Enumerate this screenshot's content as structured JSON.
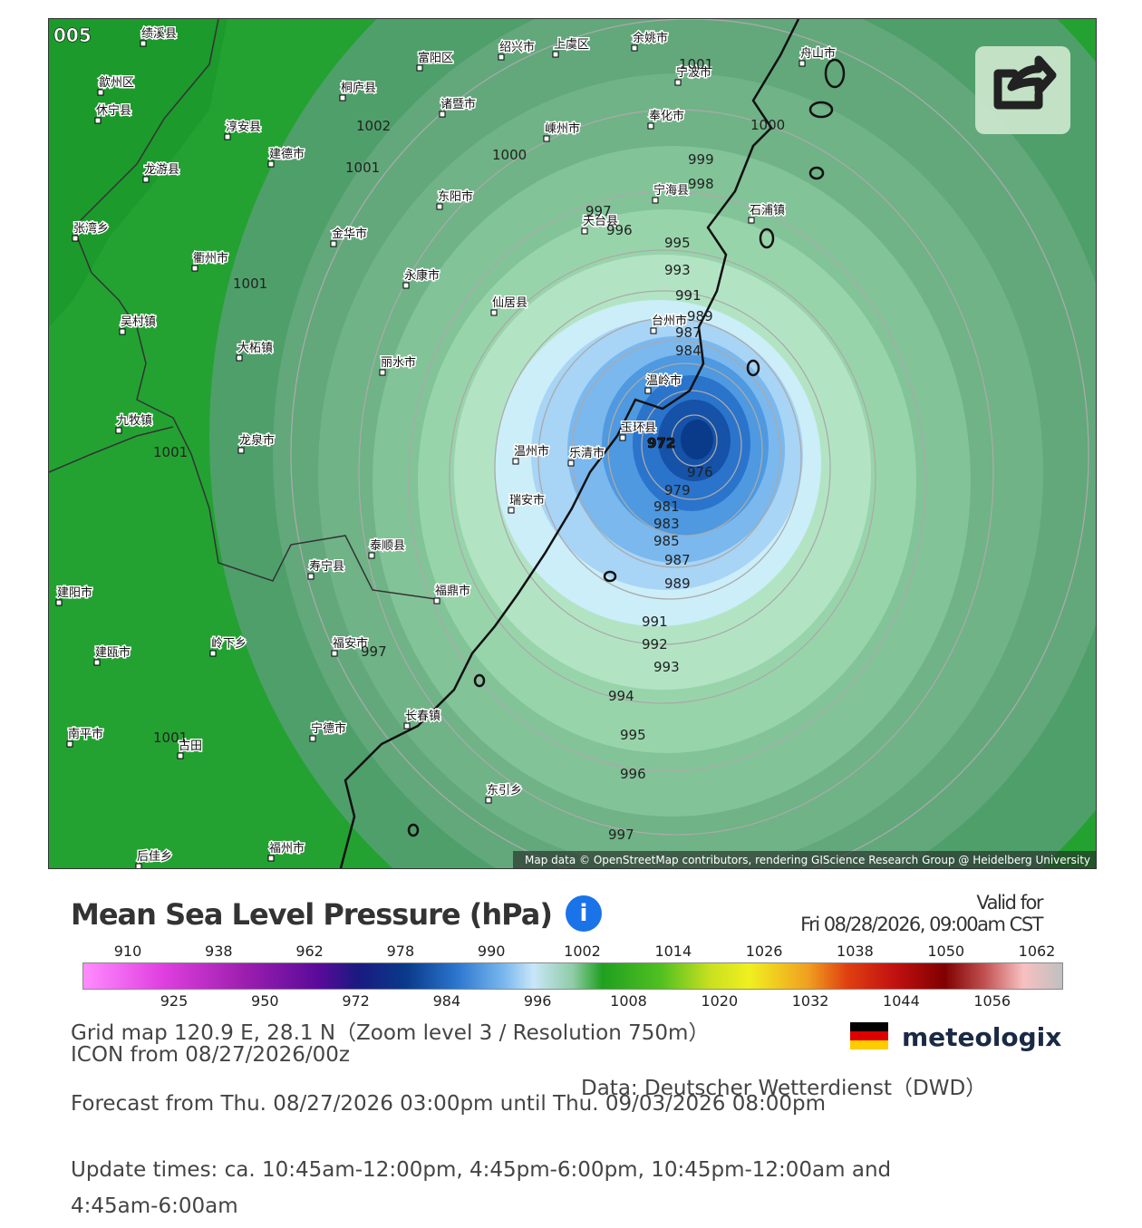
{
  "map": {
    "corner_label": "005",
    "places": [
      "绩溪县",
      "歙州区",
      "休宁县",
      "富阳区",
      "桐庐县",
      "诸暨市",
      "绍兴市",
      "上虞区",
      "余姚市",
      "宁波市",
      "舟山市",
      "奉化市",
      "嵊州市",
      "淳安县",
      "建德市",
      "龙游县",
      "东阳市",
      "宁海县",
      "天台县",
      "石浦镇",
      "张湾乡",
      "金华市",
      "衢州市",
      "永康市",
      "仙居县",
      "台州市",
      "吴村镇",
      "大柘镇",
      "丽水市",
      "温岭市",
      "九牧镇",
      "玉环县",
      "龙泉市",
      "温州市",
      "乐清市",
      "瑞安市",
      "泰顺县",
      "寿宁县",
      "福鼎市",
      "建阳市",
      "建瓯市",
      "岭下乡",
      "福安市",
      "宁德市",
      "长春镇",
      "南平市",
      "古田",
      "东引乡",
      "福州市",
      "后佳乡"
    ],
    "isobar_labels": [
      1002,
      1001,
      1000,
      1000,
      1001,
      999,
      998,
      997,
      996,
      995,
      993,
      991,
      989,
      987,
      984,
      972,
      976,
      979,
      981,
      983,
      985,
      987,
      989,
      991,
      992,
      993,
      994,
      995,
      996,
      997,
      997,
      1001,
      1001,
      1001
    ],
    "attribution": "Map data © OpenStreetMap contributors, rendering GIScience Research Group @ Heidelberg University"
  },
  "header": {
    "title": "Mean Sea Level Pressure (hPa)",
    "valid_label": "Valid for",
    "valid_time": "Fri 08/28/2026, 09:00am CST"
  },
  "legend": {
    "top_ticks": [
      910,
      938,
      962,
      978,
      990,
      1002,
      1014,
      1026,
      1038,
      1050,
      1062
    ],
    "bottom_ticks": [
      925,
      950,
      972,
      984,
      996,
      1008,
      1020,
      1032,
      1044,
      1056
    ]
  },
  "info": {
    "grid": "Grid map 120.9 E, 28.1 N（Zoom level 3 / Resolution 750m）",
    "model": "ICON from 08/27/2026/00z",
    "source": "Data: Deutscher Wetterdienst（DWD）",
    "forecast": "Forecast from Thu. 08/27/2026 03:00pm until Thu. 09/03/2026 08:00pm",
    "updates": "Update times: ca. 10:45am-12:00pm, 4:45pm-6:00pm, 10:45pm-12:00am and",
    "updates_2": "4:45am-6:00am",
    "brand": "meteologix"
  }
}
